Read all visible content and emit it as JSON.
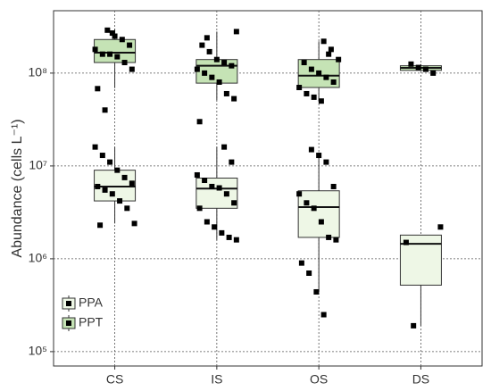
{
  "chart_data": {
    "type": "box",
    "y_label": "Abundance (cells  L⁻¹)",
    "log_scale": true,
    "grid": true,
    "legend": "bottom-left",
    "categories": [
      "CS",
      "IS",
      "OS",
      "DS"
    ],
    "ylim": [
      70000,
      470000000
    ],
    "yticks": [
      {
        "value": 100000,
        "label": "10⁵"
      },
      {
        "value": 1000000,
        "label": "10⁶"
      },
      {
        "value": 10000000,
        "label": "10⁷"
      },
      {
        "value": 100000000,
        "label": "10⁸"
      }
    ],
    "series": [
      {
        "name": "PPA",
        "color": "#eef7e6",
        "boxes": [
          {
            "low": 2400000,
            "q1": 4200000,
            "median": 6000000,
            "q3": 9000000,
            "high": 16000000
          },
          {
            "low": 1600000,
            "q1": 3500000,
            "median": 5700000,
            "q3": 7400000,
            "high": 16000000
          },
          {
            "low": 440000,
            "q1": 1700000,
            "median": 3600000,
            "q3": 5400000,
            "high": 14000000
          },
          {
            "low": 190000,
            "q1": 520000,
            "median": 1450000,
            "q3": 1800000,
            "high": 1800000
          }
        ],
        "points": [
          [
            16000000,
            13000000,
            11000000,
            9000000,
            7500000,
            6500000,
            6000000,
            5500000,
            5000000,
            4200000,
            3500000,
            2400000,
            2300000
          ],
          [
            16000000,
            11000000,
            8000000,
            7000000,
            6000000,
            5800000,
            5000000,
            4000000,
            3500000,
            2500000,
            2200000,
            1900000,
            1700000,
            1600000
          ],
          [
            15000000,
            13000000,
            11000000,
            6000000,
            5000000,
            4000000,
            3500000,
            2500000,
            1700000,
            1600000,
            900000,
            700000,
            440000,
            250000
          ],
          [
            2200000,
            1500000,
            190000
          ]
        ]
      },
      {
        "name": "PPT",
        "color": "#c5e3b5",
        "boxes": [
          {
            "low": 69000000,
            "q1": 130000000,
            "median": 166000000,
            "q3": 230000000,
            "high": 300000000
          },
          {
            "low": 51000000,
            "q1": 78000000,
            "median": 120000000,
            "q3": 140000000,
            "high": 280000000
          },
          {
            "low": 50000000,
            "q1": 70000000,
            "median": 94000000,
            "q3": 140000000,
            "high": 220000000
          },
          {
            "low": 105000000,
            "q1": 107000000,
            "median": 114000000,
            "q3": 120000000,
            "high": 125000000
          }
        ],
        "points": [
          [
            290000000,
            250000000,
            230000000,
            200000000,
            180000000,
            160000000,
            160000000,
            150000000,
            130000000,
            110000000,
            68000000,
            40000000,
            270000000
          ],
          [
            280000000,
            200000000,
            170000000,
            140000000,
            130000000,
            120000000,
            110000000,
            100000000,
            90000000,
            80000000,
            60000000,
            53000000,
            30000000,
            240000000
          ],
          [
            220000000,
            180000000,
            140000000,
            130000000,
            110000000,
            100000000,
            90000000,
            80000000,
            70000000,
            60000000,
            55000000,
            50000000,
            160000000
          ],
          [
            125000000,
            115000000,
            110000000,
            100000000
          ]
        ]
      }
    ]
  }
}
